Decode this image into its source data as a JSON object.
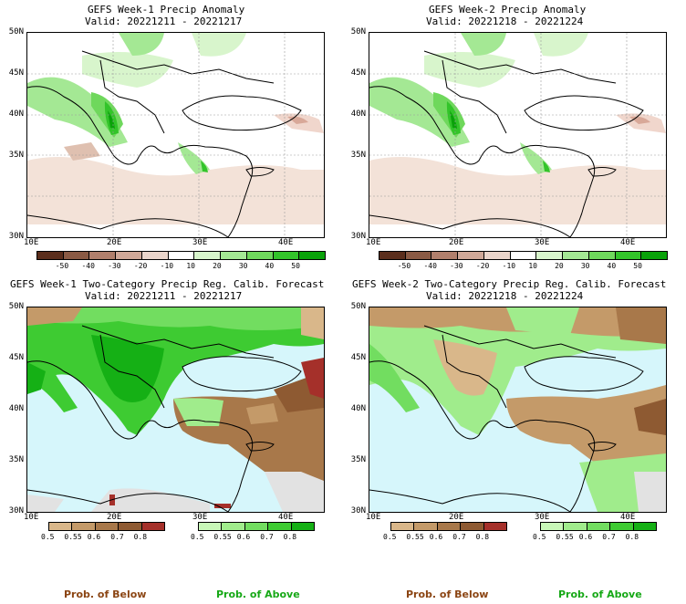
{
  "panels": [
    {
      "id": "p1",
      "title": "GEFS Week-1 Precip Anomaly",
      "valid": "Valid: 20221211 - 20221217"
    },
    {
      "id": "p2",
      "title": "GEFS Week-2 Precip Anomaly",
      "valid": "Valid: 20221218 - 20221224"
    },
    {
      "id": "p3",
      "title": "GEFS Week-1 Two-Category Precip Reg. Calib. Forecast",
      "valid": "Valid: 20221211 - 20221217"
    },
    {
      "id": "p4",
      "title": "GEFS Week-2 Two-Category Precip Reg. Calib. Forecast",
      "valid": "Valid: 20221218 - 20221224"
    }
  ],
  "lat_labels": [
    "50N",
    "45N",
    "40N",
    "35N",
    "30N"
  ],
  "lon_labels": [
    "10E",
    "20E",
    "30E",
    "40E"
  ],
  "anomaly_colorbar": {
    "ticks": [
      "-50",
      "-40",
      "-30",
      "-20",
      "-10",
      "10",
      "20",
      "30",
      "40",
      "50"
    ],
    "colors": [
      "#5b2e1c",
      "#8a5a44",
      "#b07f6c",
      "#cfa898",
      "#ead5cb",
      "#ffffff",
      "#d8f5cc",
      "#a4e894",
      "#6fd85c",
      "#33c42a",
      "#0aa20a"
    ]
  },
  "prob_below_colorbar": {
    "ticks": [
      "0.5",
      "0.55",
      "0.6",
      "0.7",
      "0.8"
    ],
    "colors": [
      "#d9b78a",
      "#c49a69",
      "#a8784a",
      "#8e5a32",
      "#a5302a"
    ]
  },
  "prob_above_colorbar": {
    "ticks": [
      "0.5",
      "0.55",
      "0.6",
      "0.7",
      "0.8"
    ],
    "colors": [
      "#c8f7b8",
      "#a0ec8c",
      "#72dd60",
      "#3ecb32",
      "#15b015"
    ]
  },
  "legend": {
    "below": "Prob. of Below",
    "above": "Prob. of Above"
  },
  "legend_colors": {
    "below": "#8b4513",
    "above": "#16a816"
  }
}
